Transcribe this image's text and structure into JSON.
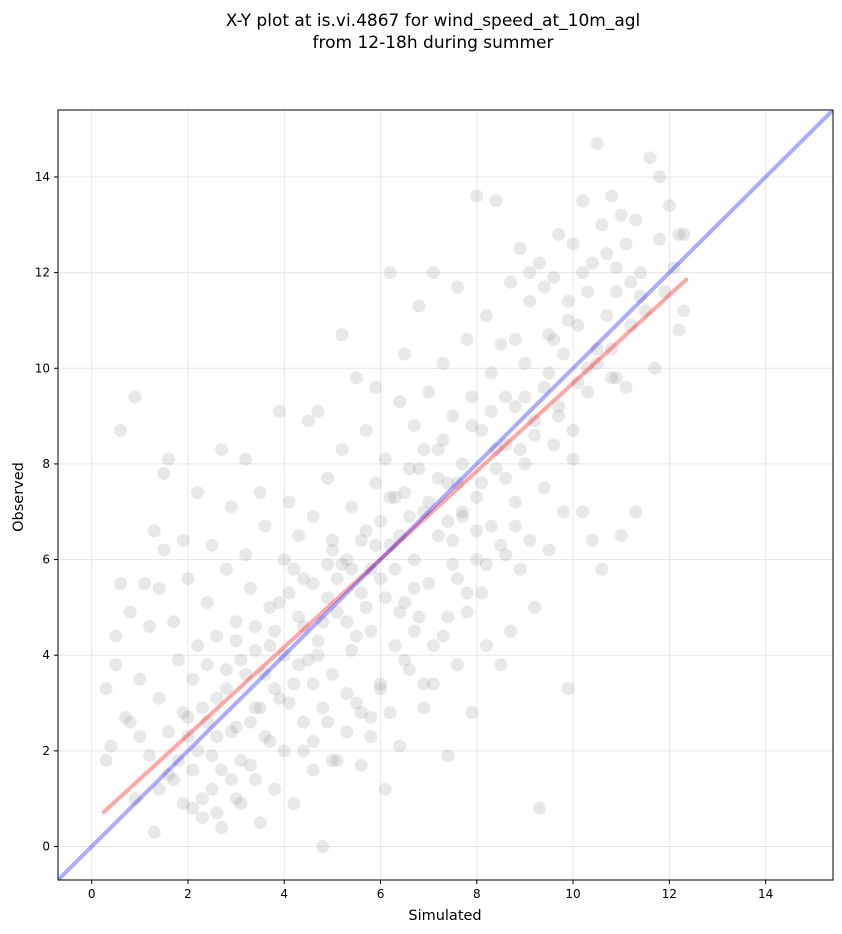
{
  "chart_data": {
    "type": "scatter",
    "title": [
      "X-Y plot at is.vi.4867 for wind_speed_at_10m_agl",
      "from 12-18h during summer"
    ],
    "xlabel": "Simulated",
    "ylabel": "Observed",
    "xlim": [
      -0.7,
      15.4
    ],
    "ylim": [
      -0.7,
      15.4
    ],
    "xticks": [
      0,
      2,
      4,
      6,
      8,
      10,
      12,
      14
    ],
    "yticks": [
      0,
      2,
      4,
      6,
      8,
      10,
      12,
      14
    ],
    "grid": true,
    "colors": {
      "points": "#808080",
      "identity_line": "#0000ff",
      "fit_line": "#ff0000"
    },
    "identity_line": {
      "x": [
        -0.7,
        15.4
      ],
      "y": [
        -0.7,
        15.4
      ]
    },
    "fit_line": {
      "x": [
        0.25,
        12.35
      ],
      "y": [
        0.72,
        11.85
      ]
    },
    "points": [
      [
        0.3,
        1.8
      ],
      [
        0.3,
        3.3
      ],
      [
        0.4,
        2.1
      ],
      [
        0.5,
        4.4
      ],
      [
        0.5,
        3.8
      ],
      [
        0.6,
        5.5
      ],
      [
        0.6,
        8.7
      ],
      [
        0.7,
        2.7
      ],
      [
        0.8,
        2.6
      ],
      [
        0.8,
        4.9
      ],
      [
        0.9,
        9.4
      ],
      [
        0.9,
        1.0
      ],
      [
        1.0,
        3.5
      ],
      [
        1.0,
        2.3
      ],
      [
        1.1,
        5.5
      ],
      [
        1.2,
        4.6
      ],
      [
        1.2,
        1.9
      ],
      [
        1.3,
        6.6
      ],
      [
        1.3,
        0.3
      ],
      [
        1.4,
        5.4
      ],
      [
        1.4,
        3.1
      ],
      [
        1.5,
        6.2
      ],
      [
        1.5,
        7.8
      ],
      [
        1.6,
        8.1
      ],
      [
        1.6,
        2.4
      ],
      [
        1.7,
        4.7
      ],
      [
        1.7,
        1.4
      ],
      [
        1.8,
        3.9
      ],
      [
        1.9,
        6.4
      ],
      [
        1.9,
        0.9
      ],
      [
        2.0,
        5.6
      ],
      [
        2.0,
        2.7
      ],
      [
        2.1,
        3.5
      ],
      [
        2.1,
        1.6
      ],
      [
        2.2,
        4.2
      ],
      [
        2.2,
        7.4
      ],
      [
        2.3,
        2.9
      ],
      [
        2.3,
        0.6
      ],
      [
        2.4,
        5.1
      ],
      [
        2.4,
        3.8
      ],
      [
        2.5,
        1.9
      ],
      [
        2.5,
        6.3
      ],
      [
        2.6,
        4.4
      ],
      [
        2.6,
        2.3
      ],
      [
        2.7,
        8.3
      ],
      [
        2.7,
        0.4
      ],
      [
        2.8,
        3.3
      ],
      [
        2.8,
        5.8
      ],
      [
        2.9,
        1.4
      ],
      [
        2.9,
        7.1
      ],
      [
        3.0,
        4.7
      ],
      [
        3.0,
        2.5
      ],
      [
        3.1,
        3.9
      ],
      [
        3.1,
        0.9
      ],
      [
        3.2,
        6.1
      ],
      [
        3.2,
        8.1
      ],
      [
        3.3,
        1.7
      ],
      [
        3.3,
        5.4
      ],
      [
        3.4,
        2.9
      ],
      [
        3.4,
        4.1
      ],
      [
        3.5,
        7.4
      ],
      [
        3.5,
        0.5
      ],
      [
        3.6,
        3.6
      ],
      [
        3.6,
        6.7
      ],
      [
        3.7,
        2.2
      ],
      [
        3.7,
        5.0
      ],
      [
        3.8,
        1.2
      ],
      [
        3.8,
        4.5
      ],
      [
        3.9,
        9.1
      ],
      [
        3.9,
        3.1
      ],
      [
        4.0,
        6.0
      ],
      [
        4.0,
        2.0
      ],
      [
        4.1,
        5.3
      ],
      [
        4.1,
        7.2
      ],
      [
        4.2,
        3.4
      ],
      [
        4.2,
        0.9
      ],
      [
        4.3,
        4.8
      ],
      [
        4.3,
        6.5
      ],
      [
        4.4,
        2.6
      ],
      [
        4.4,
        5.6
      ],
      [
        4.5,
        8.9
      ],
      [
        4.5,
        3.9
      ],
      [
        4.6,
        1.6
      ],
      [
        4.6,
        6.9
      ],
      [
        4.7,
        4.3
      ],
      [
        4.7,
        9.1
      ],
      [
        4.8,
        2.9
      ],
      [
        4.8,
        0.0
      ],
      [
        4.9,
        5.9
      ],
      [
        4.9,
        7.7
      ],
      [
        5.0,
        3.6
      ],
      [
        5.0,
        6.4
      ],
      [
        5.1,
        1.8
      ],
      [
        5.1,
        4.9
      ],
      [
        5.2,
        10.7
      ],
      [
        5.2,
        8.3
      ],
      [
        5.3,
        2.4
      ],
      [
        5.3,
        6.0
      ],
      [
        5.4,
        4.1
      ],
      [
        5.4,
        7.1
      ],
      [
        5.5,
        9.8
      ],
      [
        5.5,
        3.0
      ],
      [
        5.6,
        5.3
      ],
      [
        5.6,
        1.7
      ],
      [
        5.7,
        8.7
      ],
      [
        5.7,
        6.6
      ],
      [
        5.8,
        4.5
      ],
      [
        5.8,
        2.7
      ],
      [
        5.9,
        7.6
      ],
      [
        5.9,
        9.6
      ],
      [
        6.0,
        5.6
      ],
      [
        6.0,
        3.4
      ],
      [
        6.1,
        8.1
      ],
      [
        6.1,
        1.2
      ],
      [
        6.2,
        6.3
      ],
      [
        6.2,
        12.0
      ],
      [
        6.3,
        4.2
      ],
      [
        6.3,
        7.3
      ],
      [
        6.4,
        9.3
      ],
      [
        6.4,
        2.1
      ],
      [
        6.5,
        5.1
      ],
      [
        6.5,
        10.3
      ],
      [
        6.6,
        7.9
      ],
      [
        6.6,
        3.7
      ],
      [
        6.7,
        6.0
      ],
      [
        6.7,
        8.8
      ],
      [
        6.8,
        4.8
      ],
      [
        6.8,
        11.3
      ],
      [
        6.9,
        2.9
      ],
      [
        6.9,
        7.0
      ],
      [
        7.0,
        9.5
      ],
      [
        7.0,
        5.5
      ],
      [
        7.1,
        12.0
      ],
      [
        7.1,
        3.4
      ],
      [
        7.2,
        8.3
      ],
      [
        7.2,
        6.5
      ],
      [
        7.3,
        10.1
      ],
      [
        7.3,
        4.4
      ],
      [
        7.4,
        1.9
      ],
      [
        7.4,
        7.6
      ],
      [
        7.5,
        9.0
      ],
      [
        7.5,
        5.9
      ],
      [
        7.6,
        11.7
      ],
      [
        7.6,
        3.8
      ],
      [
        7.7,
        8.0
      ],
      [
        7.7,
        6.9
      ],
      [
        7.8,
        10.6
      ],
      [
        7.8,
        4.9
      ],
      [
        7.9,
        2.8
      ],
      [
        7.9,
        9.4
      ],
      [
        8.0,
        7.3
      ],
      [
        8.0,
        13.6
      ],
      [
        8.1,
        5.3
      ],
      [
        8.1,
        8.7
      ],
      [
        8.2,
        11.1
      ],
      [
        8.2,
        4.2
      ],
      [
        8.3,
        9.9
      ],
      [
        8.3,
        6.7
      ],
      [
        8.4,
        13.5
      ],
      [
        8.4,
        7.9
      ],
      [
        8.5,
        3.8
      ],
      [
        8.5,
        10.5
      ],
      [
        8.6,
        8.4
      ],
      [
        8.6,
        6.1
      ],
      [
        8.7,
        11.8
      ],
      [
        8.7,
        4.5
      ],
      [
        8.8,
        9.2
      ],
      [
        8.8,
        7.2
      ],
      [
        8.9,
        12.5
      ],
      [
        8.9,
        5.8
      ],
      [
        9.0,
        10.1
      ],
      [
        9.0,
        8.0
      ],
      [
        9.1,
        6.4
      ],
      [
        9.1,
        11.4
      ],
      [
        9.2,
        8.9
      ],
      [
        9.2,
        5.0
      ],
      [
        9.3,
        12.2
      ],
      [
        9.3,
        0.8
      ],
      [
        9.4,
        9.6
      ],
      [
        9.4,
        7.5
      ],
      [
        9.5,
        10.7
      ],
      [
        9.5,
        6.2
      ],
      [
        9.6,
        11.9
      ],
      [
        9.6,
        8.4
      ],
      [
        9.7,
        12.8
      ],
      [
        9.7,
        9.2
      ],
      [
        9.8,
        10.3
      ],
      [
        9.8,
        7.0
      ],
      [
        9.9,
        3.3
      ],
      [
        9.9,
        11.4
      ],
      [
        10.0,
        8.1
      ],
      [
        10.0,
        12.6
      ],
      [
        10.1,
        9.7
      ],
      [
        10.1,
        10.9
      ],
      [
        10.2,
        7.0
      ],
      [
        10.2,
        13.5
      ],
      [
        10.3,
        11.6
      ],
      [
        10.3,
        9.5
      ],
      [
        10.4,
        6.4
      ],
      [
        10.4,
        12.2
      ],
      [
        10.5,
        14.7
      ],
      [
        10.5,
        10.1
      ],
      [
        10.6,
        5.8
      ],
      [
        10.6,
        13.0
      ],
      [
        10.7,
        11.1
      ],
      [
        10.7,
        12.4
      ],
      [
        10.8,
        9.8
      ],
      [
        10.8,
        13.6
      ],
      [
        10.9,
        11.6
      ],
      [
        10.9,
        12.1
      ],
      [
        11.0,
        6.5
      ],
      [
        11.0,
        13.2
      ],
      [
        11.1,
        9.6
      ],
      [
        11.1,
        12.6
      ],
      [
        11.2,
        10.9
      ],
      [
        11.3,
        13.1
      ],
      [
        11.3,
        7.0
      ],
      [
        11.4,
        12.0
      ],
      [
        11.5,
        11.2
      ],
      [
        11.6,
        14.4
      ],
      [
        11.7,
        10.0
      ],
      [
        11.8,
        14.0
      ],
      [
        11.8,
        12.7
      ],
      [
        11.9,
        11.6
      ],
      [
        12.0,
        13.4
      ],
      [
        12.1,
        12.1
      ],
      [
        12.2,
        12.8
      ],
      [
        12.2,
        10.8
      ],
      [
        12.3,
        11.2
      ],
      [
        12.3,
        12.8
      ],
      [
        9.9,
        11.0
      ],
      [
        9.1,
        12.0
      ],
      [
        9.6,
        10.6
      ],
      [
        10.0,
        8.7
      ],
      [
        9.4,
        11.7
      ],
      [
        10.3,
        10.0
      ],
      [
        9.2,
        8.6
      ],
      [
        8.6,
        9.4
      ],
      [
        10.8,
        10.4
      ],
      [
        9.7,
        9.0
      ],
      [
        10.5,
        10.4
      ],
      [
        11.4,
        11.5
      ],
      [
        8.3,
        9.1
      ],
      [
        8.8,
        10.6
      ],
      [
        10.2,
        12.0
      ],
      [
        9.0,
        9.4
      ],
      [
        10.9,
        9.8
      ],
      [
        11.2,
        11.8
      ],
      [
        8.9,
        8.3
      ],
      [
        9.5,
        9.9
      ],
      [
        7.3,
        8.5
      ],
      [
        7.6,
        7.6
      ],
      [
        6.8,
        7.9
      ],
      [
        8.1,
        7.6
      ],
      [
        6.4,
        6.5
      ],
      [
        7.9,
        8.8
      ],
      [
        7.0,
        7.2
      ],
      [
        6.5,
        7.4
      ],
      [
        8.4,
        8.3
      ],
      [
        7.7,
        7.0
      ],
      [
        6.2,
        7.3
      ],
      [
        7.4,
        6.8
      ],
      [
        6.9,
        8.3
      ],
      [
        8.0,
        6.6
      ],
      [
        6.6,
        6.9
      ],
      [
        7.2,
        7.7
      ],
      [
        5.9,
        6.3
      ],
      [
        8.6,
        7.7
      ],
      [
        7.5,
        6.4
      ],
      [
        6.3,
        5.8
      ],
      [
        5.4,
        5.8
      ],
      [
        6.0,
        6.8
      ],
      [
        5.7,
        5.0
      ],
      [
        5.2,
        5.9
      ],
      [
        6.7,
        5.4
      ],
      [
        4.9,
        5.2
      ],
      [
        5.6,
        6.4
      ],
      [
        6.1,
        5.2
      ],
      [
        4.6,
        5.5
      ],
      [
        5.3,
        4.7
      ],
      [
        5.8,
        5.8
      ],
      [
        4.4,
        4.6
      ],
      [
        5.0,
        6.2
      ],
      [
        6.4,
        4.9
      ],
      [
        4.7,
        4.0
      ],
      [
        5.5,
        4.4
      ],
      [
        4.2,
        5.8
      ],
      [
        5.1,
        5.6
      ],
      [
        3.9,
        5.1
      ],
      [
        4.8,
        4.7
      ],
      [
        3.7,
        4.2
      ],
      [
        4.3,
        3.8
      ],
      [
        3.4,
        4.6
      ],
      [
        4.0,
        4.0
      ],
      [
        3.2,
        3.6
      ],
      [
        4.6,
        3.4
      ],
      [
        3.8,
        3.3
      ],
      [
        3.0,
        4.3
      ],
      [
        3.5,
        2.9
      ],
      [
        2.8,
        3.7
      ],
      [
        4.1,
        3.0
      ],
      [
        3.3,
        2.6
      ],
      [
        2.6,
        3.1
      ],
      [
        3.6,
        2.3
      ],
      [
        2.9,
        2.4
      ],
      [
        2.4,
        2.6
      ],
      [
        3.1,
        1.8
      ],
      [
        2.2,
        2.0
      ],
      [
        2.7,
        1.6
      ],
      [
        2.0,
        2.3
      ],
      [
        3.4,
        1.4
      ],
      [
        2.5,
        1.2
      ],
      [
        1.8,
        1.8
      ],
      [
        2.3,
        1.0
      ],
      [
        1.6,
        1.5
      ],
      [
        2.1,
        0.8
      ],
      [
        3.0,
        1.0
      ],
      [
        1.4,
        1.2
      ],
      [
        2.6,
        0.7
      ],
      [
        1.9,
        2.8
      ],
      [
        4.4,
        2.0
      ],
      [
        4.9,
        2.6
      ],
      [
        5.3,
        3.2
      ],
      [
        4.6,
        2.2
      ],
      [
        5.6,
        2.8
      ],
      [
        5.0,
        1.8
      ],
      [
        6.0,
        3.3
      ],
      [
        5.8,
        2.3
      ],
      [
        6.5,
        3.9
      ],
      [
        6.2,
        2.8
      ],
      [
        6.9,
        3.4
      ],
      [
        7.1,
        4.2
      ],
      [
        6.7,
        4.5
      ],
      [
        7.4,
        4.8
      ],
      [
        7.8,
        5.3
      ],
      [
        8.2,
        5.9
      ],
      [
        7.6,
        5.6
      ],
      [
        8.5,
        6.3
      ],
      [
        8.8,
        6.7
      ],
      [
        8.0,
        6.0
      ]
    ]
  }
}
